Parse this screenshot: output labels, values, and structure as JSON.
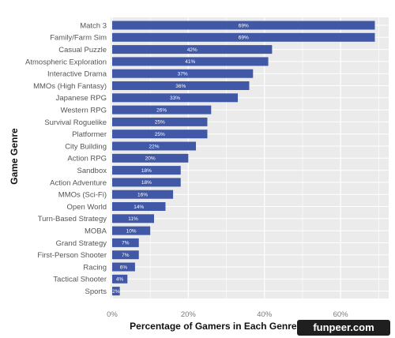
{
  "chart_data": {
    "type": "bar",
    "orientation": "horizontal",
    "categories": [
      "Match 3",
      "Family/Farm Sim",
      "Casual Puzzle",
      "Atmospheric Exploration",
      "Interactive Drama",
      "MMOs (High Fantasy)",
      "Japanese RPG",
      "Western RPG",
      "Survival Roguelike",
      "Platformer",
      "City Building",
      "Action RPG",
      "Sandbox",
      "Action Adventure",
      "MMOs (Sci-Fi)",
      "Open World",
      "Turn-Based Strategy",
      "MOBA",
      "Grand Strategy",
      "First-Person Shooter",
      "Racing",
      "Tactical Shooter",
      "Sports"
    ],
    "values": [
      69,
      69,
      42,
      41,
      37,
      36,
      33,
      26,
      25,
      25,
      22,
      20,
      18,
      18,
      16,
      14,
      11,
      10,
      7,
      7,
      6,
      4,
      2
    ],
    "data_labels": [
      "69%",
      "69%",
      "42%",
      "41%",
      "37%",
      "36%",
      "33%",
      "26%",
      "25%",
      "25%",
      "22%",
      "20%",
      "18%",
      "18%",
      "16%",
      "14%",
      "11%",
      "10%",
      "7%",
      "7%",
      "6%",
      "4%",
      "2%"
    ],
    "xlabel": "Percentage of Gamers in Each Genre That Are Female",
    "ylabel": "Game Genre",
    "xlim": [
      0,
      72
    ],
    "xticks": [
      0,
      20,
      40,
      60
    ],
    "xtick_labels": [
      "0%",
      "20%",
      "40%",
      "60%"
    ],
    "grid": true,
    "colors": {
      "bar": "#4158a6",
      "panel": "#ebebeb",
      "grid": "#ffffff"
    }
  },
  "watermark": {
    "text": "funpeer.com"
  }
}
